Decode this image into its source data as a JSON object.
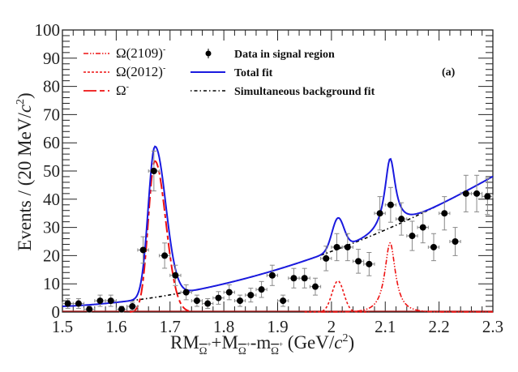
{
  "chart_data": {
    "type": "scatter",
    "title": "",
    "panel_label": "(a)",
    "xlabel": {
      "main1": "RM",
      "sub1": "Ω",
      "sup1": "+",
      "main2": "+M",
      "sub2": "Ω",
      "sup2": "+",
      "main3": "-m",
      "sub3": "Ω",
      "sup3": "+",
      "unit": " (GeV/",
      "unit_c": "c",
      "unit_pow": "2",
      "unit_end": ")"
    },
    "ylabel": {
      "text": "Events / (20 MeV/",
      "c": "c",
      "pow": "2",
      "end": ")"
    },
    "xlim": [
      1.5,
      2.3
    ],
    "ylim": [
      0,
      100
    ],
    "x_ticks": [
      "1.5",
      "1.6",
      "1.7",
      "1.8",
      "1.9",
      "2",
      "2.1",
      "2.2",
      "2.3"
    ],
    "x_tick_values": [
      1.5,
      1.6,
      1.7,
      1.8,
      1.9,
      2.0,
      2.1,
      2.2,
      2.3
    ],
    "y_ticks": [
      "0",
      "10",
      "20",
      "30",
      "40",
      "50",
      "60",
      "70",
      "80",
      "90",
      "100"
    ],
    "y_tick_values": [
      0,
      10,
      20,
      30,
      40,
      50,
      60,
      70,
      80,
      90,
      100
    ],
    "grid": false,
    "legend": {
      "placement": "top",
      "entries": [
        {
          "label": "Ω(2109)",
          "sup": "-",
          "style": "dash-dot-dot",
          "color": "#ee1111"
        },
        {
          "label": "Ω(2012)",
          "sup": "-",
          "style": "dotted",
          "color": "#ee1111"
        },
        {
          "label": "Ω",
          "sup": "-",
          "style": "long-dash",
          "color": "#ee1111"
        },
        {
          "label": "Data in signal region",
          "style": "marker",
          "color": "#000000"
        },
        {
          "label": "Total fit",
          "style": "solid",
          "color": "#1a1adf"
        },
        {
          "label": "Simultaneous background fit",
          "style": "dash-dot",
          "color": "#000000"
        }
      ]
    },
    "colors": {
      "data": "#000000",
      "total_fit": "#1a1adf",
      "components": "#ee1111",
      "background": "#000000",
      "error_bars": "#888888"
    },
    "bin_width": 0.02,
    "series": [
      {
        "name": "Data in signal region",
        "x": [
          1.51,
          1.53,
          1.55,
          1.57,
          1.59,
          1.61,
          1.63,
          1.65,
          1.67,
          1.69,
          1.71,
          1.73,
          1.75,
          1.77,
          1.79,
          1.81,
          1.83,
          1.85,
          1.87,
          1.89,
          1.91,
          1.93,
          1.95,
          1.97,
          1.99,
          2.01,
          2.03,
          2.05,
          2.07,
          2.09,
          2.11,
          2.13,
          2.15,
          2.17,
          2.19,
          2.21,
          2.23,
          2.25,
          2.27,
          2.29
        ],
        "y": [
          3,
          3,
          1,
          4,
          4,
          1,
          2,
          22,
          50,
          20,
          13,
          7,
          4,
          3,
          5,
          7,
          4,
          6,
          8,
          13,
          4,
          12,
          12,
          9,
          19,
          23,
          23,
          18,
          17,
          35,
          38,
          33,
          27,
          30,
          23,
          35,
          25,
          42,
          42,
          41
        ]
      }
    ],
    "fit_model": {
      "background": {
        "name": "Simultaneous background fit",
        "a": 2.0,
        "b": 8.0,
        "c": 62.0,
        "x0": 1.5
      },
      "omega": {
        "name": "Ω-",
        "mass": 1.672,
        "amplitude": 53.5,
        "width_left": 0.0125,
        "width_right": 0.02
      },
      "omega2012": {
        "name": "Ω(2012)-",
        "mass": 2.012,
        "amplitude": 11.0,
        "width": 0.011
      },
      "omega2109": {
        "name": "Ω(2109)-",
        "mass": 2.109,
        "amplitude": 24.5,
        "width": 0.012
      }
    }
  }
}
